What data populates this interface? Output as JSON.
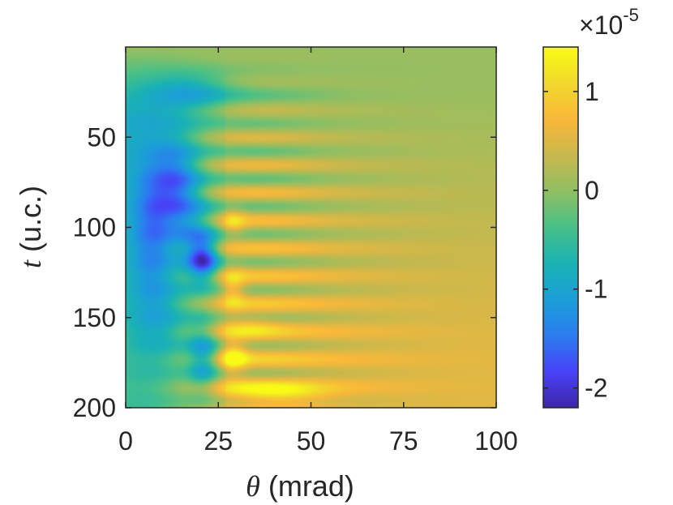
{
  "chart_data": {
    "type": "heatmap",
    "xlabel_symbol": "θ",
    "xlabel_unit": "(mrad)",
    "ylabel_symbol": "t",
    "ylabel_unit": "(u.c.)",
    "x_range": [
      0,
      100
    ],
    "y_range": [
      0,
      200
    ],
    "y_reversed": true,
    "x_ticks": [
      "0",
      "25",
      "50",
      "75",
      "100"
    ],
    "x_tick_values": [
      0,
      25,
      50,
      75,
      100
    ],
    "y_ticks": [
      "50",
      "100",
      "150",
      "200"
    ],
    "y_tick_values": [
      50,
      100,
      150,
      200
    ],
    "colorbar": {
      "range": [
        -2.2,
        1.45
      ],
      "ticks": [
        "1",
        "0",
        "-1",
        "-2"
      ],
      "tick_values": [
        1,
        0,
        -1,
        -2
      ],
      "scale_base": "×10",
      "scale_exponent": "-5",
      "colormap": [
        "#3e26a8",
        "#4743f8",
        "#2c7cf0",
        "#1b9fd8",
        "#1ab2b4",
        "#47c088",
        "#8fbf63",
        "#c8b84d",
        "#f9b839",
        "#f1d92d",
        "#f9fb15"
      ]
    },
    "grid": false,
    "background_value": 0.05,
    "features": [
      {
        "label": "blue lobe left",
        "theta": 14,
        "t": 75,
        "value": -1.5
      },
      {
        "label": "blue lobe low",
        "theta": 8,
        "t": 95,
        "value": -1.3
      },
      {
        "label": "dark minimum",
        "theta": 21,
        "t": 118,
        "value": -2.1
      },
      {
        "label": "blue lobe bottom",
        "theta": 21,
        "t": 172,
        "value": -1.4
      },
      {
        "label": "early blue band",
        "theta": 18,
        "t": 25,
        "value": -0.9
      },
      {
        "label": "yellow maximum",
        "theta": 29,
        "t": 172,
        "value": 1.25
      },
      {
        "label": "yellow spot",
        "theta": 29,
        "t": 134,
        "value": 0.9
      },
      {
        "label": "yellow spot upper",
        "theta": 29,
        "t": 97,
        "value": 0.7
      },
      {
        "label": "yellow band bottom",
        "theta": 40,
        "t": 193,
        "value": 1.0
      }
    ],
    "long_time_value_at_large_theta": 0.55
  }
}
